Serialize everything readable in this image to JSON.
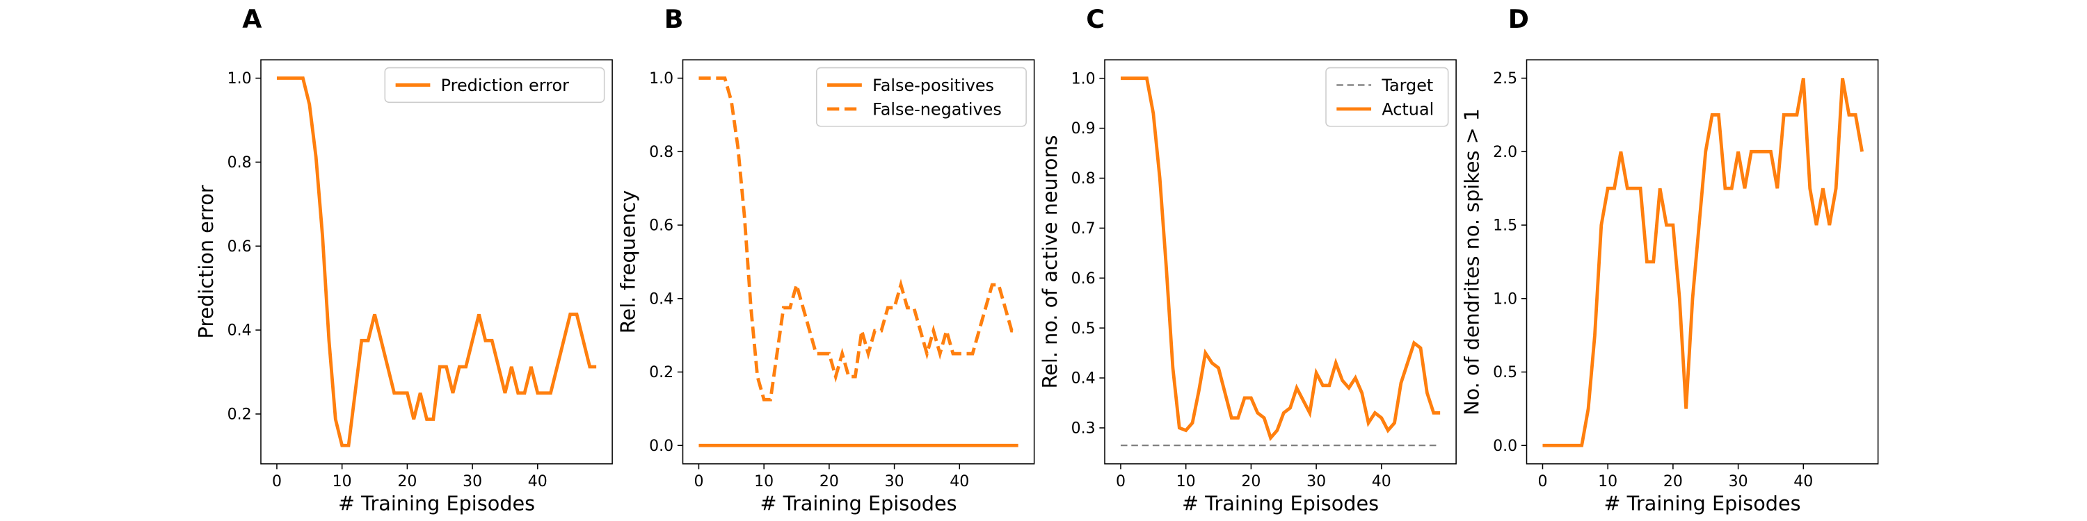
{
  "chart_data": [
    {
      "type": "line",
      "panel": "A",
      "xlabel": "# Training Episodes",
      "ylabel": "Prediction error",
      "x": [
        0,
        1,
        2,
        3,
        4,
        5,
        6,
        7,
        8,
        9,
        10,
        11,
        12,
        13,
        14,
        15,
        16,
        17,
        18,
        19,
        20,
        21,
        22,
        23,
        24,
        25,
        26,
        27,
        28,
        29,
        30,
        31,
        32,
        33,
        34,
        35,
        36,
        37,
        38,
        39,
        40,
        41,
        42,
        43,
        44,
        45,
        46,
        47,
        48,
        49
      ],
      "series": [
        {
          "name": "Prediction error",
          "color": "#ff7f0e",
          "linestyle": "solid",
          "linewidth": 2.5,
          "values": [
            1,
            1,
            1,
            1,
            1,
            0.9375,
            0.8125,
            0.625,
            0.375,
            0.1875,
            0.125,
            0.125,
            0.25,
            0.375,
            0.375,
            0.4375,
            0.375,
            0.3125,
            0.25,
            0.25,
            0.25,
            0.1875,
            0.25,
            0.1875,
            0.1875,
            0.3125,
            0.3125,
            0.25,
            0.3125,
            0.3125,
            0.375,
            0.4375,
            0.375,
            0.375,
            0.3125,
            0.25,
            0.3125,
            0.25,
            0.25,
            0.3125,
            0.25,
            0.25,
            0.25,
            0.3125,
            0.375,
            0.4375,
            0.4375,
            0.375,
            0.3125,
            0.3125
          ]
        }
      ],
      "xlim": [
        -2.45,
        51.45
      ],
      "xticks": [
        0,
        10,
        20,
        30,
        40
      ],
      "ylim": [
        0.08125,
        1.04375
      ],
      "yticks": [
        {
          "value": 0.2,
          "label": "0.2"
        },
        {
          "value": 0.4,
          "label": "0.4"
        },
        {
          "value": 0.6,
          "label": "0.6"
        },
        {
          "value": 0.8,
          "label": "0.8"
        },
        {
          "value": 1,
          "label": "1.0"
        }
      ],
      "legend": "upper right"
    },
    {
      "type": "line",
      "panel": "B",
      "xlabel": "# Training Episodes",
      "ylabel": "Rel. frequency",
      "x": [
        0,
        1,
        2,
        3,
        4,
        5,
        6,
        7,
        8,
        9,
        10,
        11,
        12,
        13,
        14,
        15,
        16,
        17,
        18,
        19,
        20,
        21,
        22,
        23,
        24,
        25,
        26,
        27,
        28,
        29,
        30,
        31,
        32,
        33,
        34,
        35,
        36,
        37,
        38,
        39,
        40,
        41,
        42,
        43,
        44,
        45,
        46,
        47,
        48,
        49
      ],
      "series": [
        {
          "name": "False-positives",
          "color": "#ff7f0e",
          "linestyle": "solid",
          "linewidth": 2.5,
          "values": [
            0,
            0,
            0,
            0,
            0,
            0,
            0,
            0,
            0,
            0,
            0,
            0,
            0,
            0,
            0,
            0,
            0,
            0,
            0,
            0,
            0,
            0,
            0,
            0,
            0,
            0,
            0,
            0,
            0,
            0,
            0,
            0,
            0,
            0,
            0,
            0,
            0,
            0,
            0,
            0,
            0,
            0,
            0,
            0,
            0,
            0,
            0,
            0,
            0,
            0
          ]
        },
        {
          "name": "False-negatives",
          "color": "#ff7f0e",
          "linestyle": "dashed",
          "linewidth": 2.5,
          "values": [
            1,
            1,
            1,
            1,
            1,
            0.9375,
            0.8125,
            0.625,
            0.375,
            0.1875,
            0.125,
            0.125,
            0.25,
            0.375,
            0.375,
            0.4375,
            0.375,
            0.3125,
            0.25,
            0.25,
            0.25,
            0.1875,
            0.25,
            0.1875,
            0.1875,
            0.3125,
            0.25,
            0.3125,
            0.3125,
            0.375,
            0.375,
            0.4375,
            0.375,
            0.375,
            0.3125,
            0.25,
            0.3125,
            0.25,
            0.3125,
            0.25,
            0.25,
            0.25,
            0.25,
            0.3125,
            0.375,
            0.4375,
            0.4375,
            0.375,
            0.3125,
            0.3125
          ]
        }
      ],
      "xlim": [
        -2.45,
        51.45
      ],
      "xticks": [
        0,
        10,
        20,
        30,
        40
      ],
      "ylim": [
        -0.05,
        1.05
      ],
      "yticks": [
        {
          "value": 0,
          "label": "0.0"
        },
        {
          "value": 0.2,
          "label": "0.2"
        },
        {
          "value": 0.4,
          "label": "0.4"
        },
        {
          "value": 0.6,
          "label": "0.6"
        },
        {
          "value": 0.8,
          "label": "0.8"
        },
        {
          "value": 1,
          "label": "1.0"
        }
      ],
      "legend": "upper right"
    },
    {
      "type": "line",
      "panel": "C",
      "xlabel": "# Training Episodes",
      "ylabel": "Rel. no. of active neurons",
      "x": [
        0,
        1,
        2,
        3,
        4,
        5,
        6,
        7,
        8,
        9,
        10,
        11,
        12,
        13,
        14,
        15,
        16,
        17,
        18,
        19,
        20,
        21,
        22,
        23,
        24,
        25,
        26,
        27,
        28,
        29,
        30,
        31,
        32,
        33,
        34,
        35,
        36,
        37,
        38,
        39,
        40,
        41,
        42,
        43,
        44,
        45,
        46,
        47,
        48,
        49
      ],
      "series": [
        {
          "name": "Target",
          "color": "#7f7f7f",
          "linestyle": "dashed",
          "linewidth": 1.2,
          "values": [
            0.265,
            0.265,
            0.265,
            0.265,
            0.265,
            0.265,
            0.265,
            0.265,
            0.265,
            0.265,
            0.265,
            0.265,
            0.265,
            0.265,
            0.265,
            0.265,
            0.265,
            0.265,
            0.265,
            0.265,
            0.265,
            0.265,
            0.265,
            0.265,
            0.265,
            0.265,
            0.265,
            0.265,
            0.265,
            0.265,
            0.265,
            0.265,
            0.265,
            0.265,
            0.265,
            0.265,
            0.265,
            0.265,
            0.265,
            0.265,
            0.265,
            0.265,
            0.265,
            0.265,
            0.265,
            0.265,
            0.265,
            0.265,
            0.265,
            0.265
          ]
        },
        {
          "name": "Actual",
          "color": "#ff7f0e",
          "linestyle": "solid",
          "linewidth": 2.5,
          "values": [
            1,
            1,
            1,
            1,
            1,
            0.93,
            0.8,
            0.62,
            0.42,
            0.3,
            0.295,
            0.31,
            0.375,
            0.45,
            0.43,
            0.42,
            0.37,
            0.32,
            0.32,
            0.36,
            0.36,
            0.33,
            0.32,
            0.28,
            0.295,
            0.33,
            0.34,
            0.38,
            0.355,
            0.33,
            0.41,
            0.385,
            0.385,
            0.43,
            0.395,
            0.38,
            0.4,
            0.37,
            0.31,
            0.33,
            0.32,
            0.295,
            0.31,
            0.39,
            0.43,
            0.47,
            0.46,
            0.37,
            0.33,
            0.33
          ]
        }
      ],
      "xlim": [
        -2.45,
        51.45
      ],
      "xticks": [
        0,
        10,
        20,
        30,
        40
      ],
      "ylim": [
        0.228,
        1.037
      ],
      "yticks": [
        {
          "value": 0.3,
          "label": "0.3"
        },
        {
          "value": 0.4,
          "label": "0.4"
        },
        {
          "value": 0.5,
          "label": "0.5"
        },
        {
          "value": 0.6,
          "label": "0.6"
        },
        {
          "value": 0.7,
          "label": "0.7"
        },
        {
          "value": 0.8,
          "label": "0.8"
        },
        {
          "value": 0.9,
          "label": "0.9"
        },
        {
          "value": 1,
          "label": "1.0"
        }
      ],
      "legend": "upper right"
    },
    {
      "type": "line",
      "panel": "D",
      "xlabel": "# Training Episodes",
      "ylabel": "No. of dendrites no. spikes > 1",
      "x": [
        0,
        1,
        2,
        3,
        4,
        5,
        6,
        7,
        8,
        9,
        10,
        11,
        12,
        13,
        14,
        15,
        16,
        17,
        18,
        19,
        20,
        21,
        22,
        23,
        24,
        25,
        26,
        27,
        28,
        29,
        30,
        31,
        32,
        33,
        34,
        35,
        36,
        37,
        38,
        39,
        40,
        41,
        42,
        43,
        44,
        45,
        46,
        47,
        48,
        49
      ],
      "series": [
        {
          "color": "#ff7f0e",
          "linestyle": "solid",
          "linewidth": 2.5,
          "values": [
            0,
            0,
            0,
            0,
            0,
            0,
            0,
            0.25,
            0.75,
            1.5,
            1.75,
            1.75,
            2,
            1.75,
            1.75,
            1.75,
            1.25,
            1.25,
            1.75,
            1.5,
            1.5,
            1,
            0.25,
            1,
            1.5,
            2,
            2.25,
            2.25,
            1.75,
            1.75,
            2,
            1.75,
            2,
            2,
            2,
            2,
            1.75,
            2.25,
            2.25,
            2.25,
            2.5,
            1.75,
            1.5,
            1.75,
            1.5,
            1.75,
            2.5,
            2.25,
            2.25,
            2
          ]
        }
      ],
      "xlim": [
        -2.45,
        51.45
      ],
      "xticks": [
        0,
        10,
        20,
        30,
        40
      ],
      "ylim": [
        -0.125,
        2.625
      ],
      "yticks": [
        {
          "value": 0,
          "label": "0.0"
        },
        {
          "value": 0.5,
          "label": "0.5"
        },
        {
          "value": 1,
          "label": "1.0"
        },
        {
          "value": 1.5,
          "label": "1.5"
        },
        {
          "value": 2,
          "label": "2.0"
        },
        {
          "value": 2.5,
          "label": "2.5"
        }
      ]
    }
  ]
}
